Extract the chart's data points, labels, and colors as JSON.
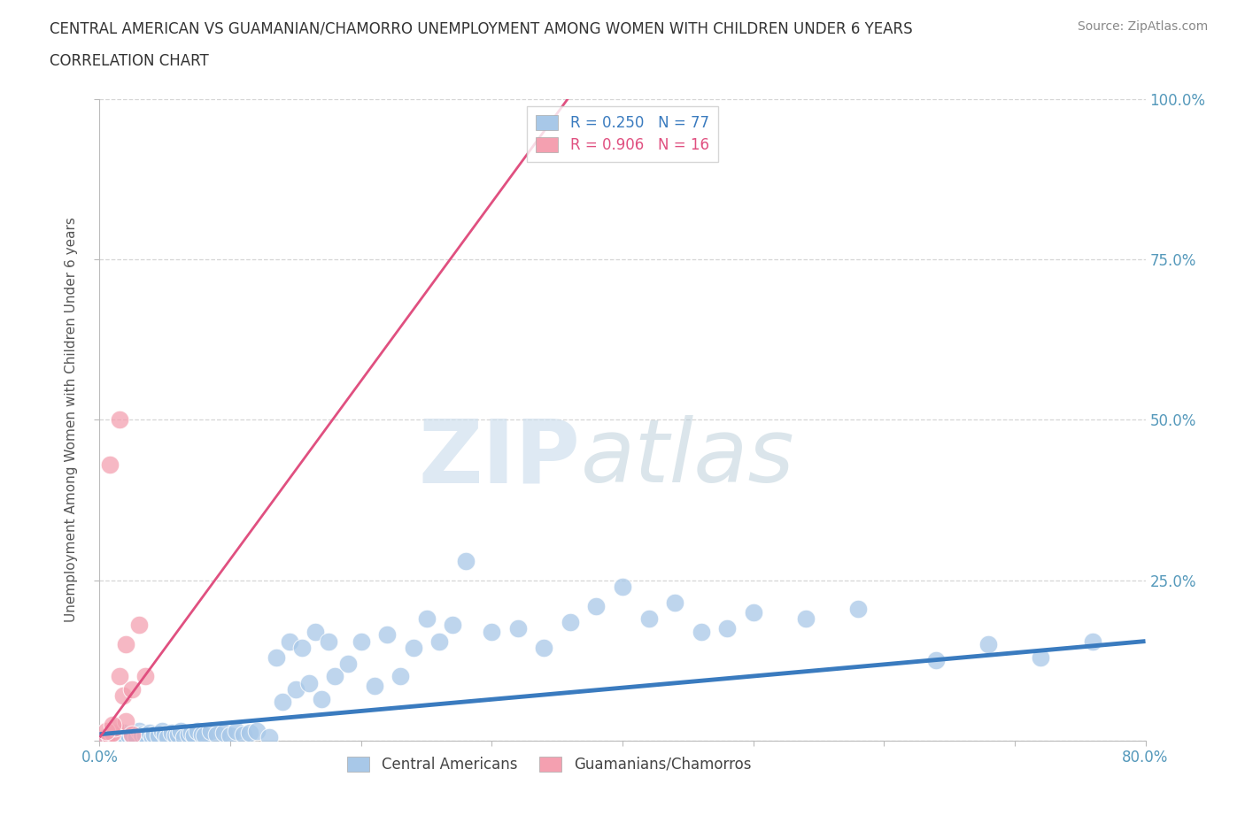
{
  "title_line1": "CENTRAL AMERICAN VS GUAMANIAN/CHAMORRO UNEMPLOYMENT AMONG WOMEN WITH CHILDREN UNDER 6 YEARS",
  "title_line2": "CORRELATION CHART",
  "source_text": "Source: ZipAtlas.com",
  "ylabel": "Unemployment Among Women with Children Under 6 years",
  "xmin": 0.0,
  "xmax": 0.8,
  "ymin": 0.0,
  "ymax": 1.0,
  "blue_R": 0.25,
  "blue_N": 77,
  "pink_R": 0.906,
  "pink_N": 16,
  "blue_scatter_color": "#a8c8e8",
  "pink_scatter_color": "#f4a0b0",
  "blue_line_color": "#3a7bbf",
  "pink_line_color": "#e05080",
  "background_color": "#ffffff",
  "watermark_zip": "ZIP",
  "watermark_atlas": "atlas",
  "blue_scatter_x": [
    0.005,
    0.008,
    0.01,
    0.012,
    0.015,
    0.018,
    0.02,
    0.022,
    0.025,
    0.028,
    0.03,
    0.032,
    0.035,
    0.038,
    0.04,
    0.042,
    0.045,
    0.048,
    0.05,
    0.052,
    0.055,
    0.058,
    0.06,
    0.062,
    0.065,
    0.068,
    0.07,
    0.072,
    0.075,
    0.078,
    0.08,
    0.085,
    0.09,
    0.095,
    0.1,
    0.105,
    0.11,
    0.115,
    0.12,
    0.13,
    0.135,
    0.14,
    0.145,
    0.15,
    0.155,
    0.16,
    0.165,
    0.17,
    0.175,
    0.18,
    0.19,
    0.2,
    0.21,
    0.22,
    0.23,
    0.24,
    0.25,
    0.26,
    0.27,
    0.28,
    0.3,
    0.32,
    0.34,
    0.36,
    0.38,
    0.4,
    0.42,
    0.44,
    0.46,
    0.48,
    0.5,
    0.54,
    0.58,
    0.64,
    0.68,
    0.72,
    0.76
  ],
  "blue_scatter_y": [
    0.005,
    0.008,
    0.01,
    0.005,
    0.008,
    0.012,
    0.005,
    0.01,
    0.008,
    0.005,
    0.015,
    0.01,
    0.008,
    0.012,
    0.005,
    0.01,
    0.008,
    0.015,
    0.01,
    0.005,
    0.012,
    0.008,
    0.01,
    0.015,
    0.005,
    0.01,
    0.012,
    0.008,
    0.015,
    0.01,
    0.008,
    0.015,
    0.01,
    0.012,
    0.008,
    0.015,
    0.01,
    0.012,
    0.015,
    0.005,
    0.13,
    0.06,
    0.155,
    0.08,
    0.145,
    0.09,
    0.17,
    0.065,
    0.155,
    0.1,
    0.12,
    0.155,
    0.085,
    0.165,
    0.1,
    0.145,
    0.19,
    0.155,
    0.18,
    0.28,
    0.17,
    0.175,
    0.145,
    0.185,
    0.21,
    0.24,
    0.19,
    0.215,
    0.17,
    0.175,
    0.2,
    0.19,
    0.205,
    0.125,
    0.15,
    0.13,
    0.155
  ],
  "pink_scatter_x": [
    0.005,
    0.008,
    0.01,
    0.012,
    0.015,
    0.018,
    0.02,
    0.025,
    0.03,
    0.035,
    0.008,
    0.015,
    0.02,
    0.025,
    0.005,
    0.01
  ],
  "pink_scatter_y": [
    0.005,
    0.008,
    0.012,
    0.02,
    0.1,
    0.07,
    0.15,
    0.08,
    0.18,
    0.1,
    0.43,
    0.5,
    0.03,
    0.01,
    0.015,
    0.025
  ],
  "blue_line_x": [
    0.0,
    0.8
  ],
  "blue_line_y": [
    0.01,
    0.155
  ],
  "pink_line_x": [
    0.0,
    0.36
  ],
  "pink_line_y": [
    0.005,
    1.005
  ]
}
